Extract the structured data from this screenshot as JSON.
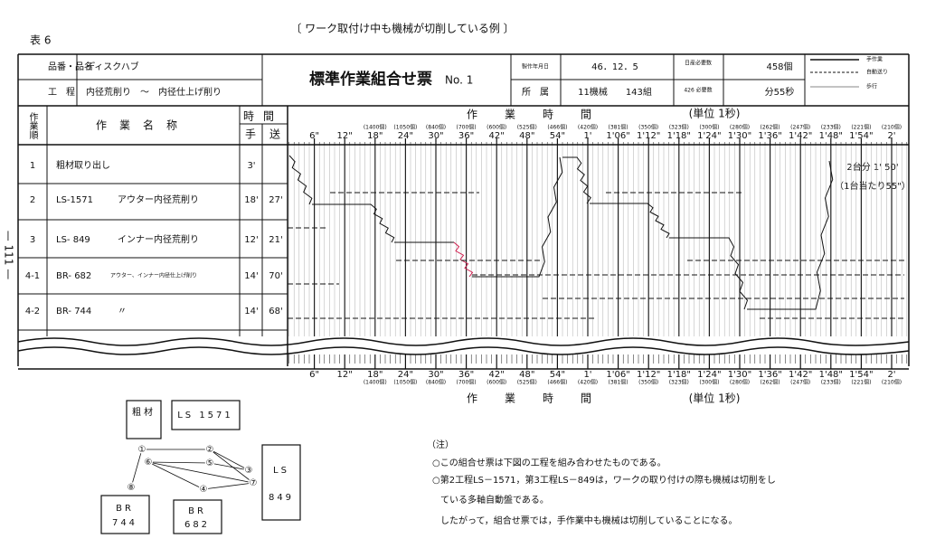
{
  "header": {
    "label": "表 6",
    "title": "〔 ワーク取付け中も機械が切削している例 〕",
    "page_number": "— 111 —"
  },
  "form": {
    "item_label": "品番・品名",
    "item": "ディスクハブ",
    "process_label": "工　程",
    "process": "内径荒削り　〜　内径仕上げ削り",
    "title": "標準作業組合せ票",
    "number": "No. 1",
    "date_label": "製作年月日",
    "date": "46．12．5",
    "daily_label": "日産必要数",
    "daily": "458個",
    "dept_label": "所　属",
    "dept": "11機械　　143組",
    "takt_label": "426 必要数",
    "takt": "分55秒"
  },
  "legend": [
    {
      "label": "手作業",
      "style": "solid"
    },
    {
      "label": "自動送り",
      "style": "dashed"
    },
    {
      "label": "歩行",
      "style": "thin"
    }
  ],
  "table": {
    "columns": {
      "order": "作業順",
      "name": "作業名称",
      "time": "時間",
      "hand": "手",
      "feed": "送",
      "chart": "作業時間",
      "unit": "(単位 1秒)"
    },
    "rows": [
      {
        "order": "1",
        "name": "粗材取り出し",
        "hand": "3'"
      },
      {
        "order": "2",
        "code": "LS-1571",
        "name": "アウター内径荒削り",
        "hand": "18'",
        "feed": "27'"
      },
      {
        "order": "3",
        "code": "LS- 849",
        "name": "インナー内径荒削り",
        "hand": "12'",
        "feed": "21'"
      },
      {
        "order": "4-1",
        "code": "BR- 682",
        "name": "アウター、インナー内径仕上げ削り",
        "hand": "14'",
        "feed": "70'"
      },
      {
        "order": "4-2",
        "code": "BR- 744",
        "name": "〃",
        "hand": "14'",
        "feed": "68'"
      }
    ],
    "time_ticks": [
      {
        "label": "6\""
      },
      {
        "label": "12\""
      },
      {
        "label": "18\"",
        "count": "(1400個)"
      },
      {
        "label": "24\"",
        "count": "(1050個)"
      },
      {
        "label": "30\"",
        "count": "(840個)"
      },
      {
        "label": "36\"",
        "count": "(700個)"
      },
      {
        "label": "42\"",
        "count": "(600個)"
      },
      {
        "label": "48\"",
        "count": "(525個)"
      },
      {
        "label": "54\"",
        "count": "(466個)"
      },
      {
        "label": "1'",
        "count": "(420個)"
      },
      {
        "label": "1'06\"",
        "count": "(381個)"
      },
      {
        "label": "1'12\"",
        "count": "(350個)"
      },
      {
        "label": "1'18\"",
        "count": "(323個)"
      },
      {
        "label": "1'24\"",
        "count": "(300個)"
      },
      {
        "label": "1'30\"",
        "count": "(280個)"
      },
      {
        "label": "1'36\"",
        "count": "(262個)"
      },
      {
        "label": "1'42\"",
        "count": "(247個)"
      },
      {
        "label": "1'48\"",
        "count": "(233個)"
      },
      {
        "label": "1'54\"",
        "count": "(221個)"
      },
      {
        "label": "2'",
        "count": "(210個)"
      }
    ],
    "annotations": [
      "2台分 1' 50'",
      "（1台当たり55\"）"
    ]
  },
  "diagram": {
    "nodes": [
      "粗材",
      "LS 1571",
      "LS 849",
      "BR 744",
      "BR 682"
    ],
    "stations": [
      "①",
      "②",
      "③",
      "④",
      "⑤",
      "⑥",
      "⑦",
      "⑧"
    ]
  },
  "notes": {
    "heading": "（注）",
    "lines": [
      "○この組合せ票は下図の工程を組み合わせたものである。",
      "○第2工程LS－1571，第3工程LS－849は，ワークの取り付けの際も機械は切削をし",
      "ている多軸自動盤である。",
      "したがって，組合せ票では，手作業中も機械は切削していることになる。"
    ]
  }
}
